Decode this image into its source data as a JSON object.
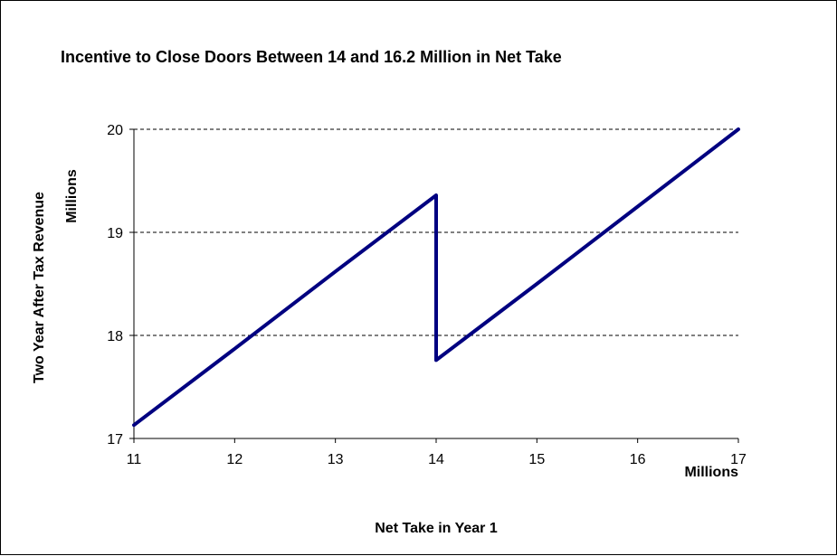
{
  "chart_data": {
    "type": "line",
    "title": "Incentive to Close Doors Between 14 and 16.2 Million in Net Take",
    "xlabel": "Net Take in Year 1",
    "xunit": "Millions",
    "ylabel": "Two Year After Tax Revenue",
    "yunit": "Millions",
    "xlim": [
      11,
      17
    ],
    "ylim": [
      17,
      20
    ],
    "xticks": [
      "11",
      "12",
      "13",
      "14",
      "15",
      "16",
      "17"
    ],
    "yticks": [
      "17",
      "18",
      "19",
      "20"
    ],
    "grid": "horizontal-dashed",
    "legend": "none",
    "line_color": "#000080",
    "series": [
      {
        "x": [
          11,
          12,
          13,
          14,
          14,
          15,
          16,
          17
        ],
        "y": [
          17.13,
          17.87,
          18.62,
          19.36,
          17.76,
          18.5,
          19.25,
          20
        ]
      }
    ]
  }
}
